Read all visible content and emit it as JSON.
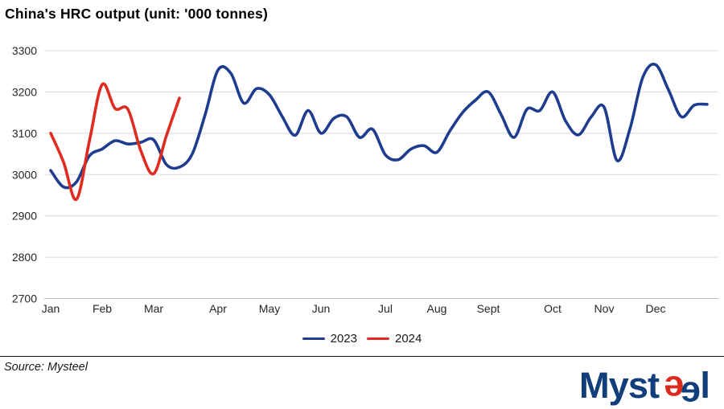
{
  "title": "China's HRC output (unit: '000 tonnes)",
  "source": "Source: Mysteel",
  "logo": {
    "text_main": "Myst",
    "glyph": "e",
    "text_end": "l",
    "alt": "Mysteel",
    "blue": "#133E7C",
    "red": "#DC2B1E"
  },
  "colors": {
    "blue": "#1F3D8F",
    "red": "#E02B20",
    "grid": "#D9D9D9",
    "axis_line": "#BFBFBF",
    "text": "#262626"
  },
  "legend": [
    {
      "label": "2023",
      "color": "#1F3D8F"
    },
    {
      "label": "2024",
      "color": "#E02B20"
    }
  ],
  "chart_data": {
    "type": "line",
    "title": "China's HRC output (unit: '000 tonnes)",
    "ylabel": "",
    "xlabel": "",
    "unit": "'000 tonnes",
    "frequency": "weekly",
    "ylim": [
      2700,
      3300
    ],
    "grid": "horizontal",
    "legend_position": "bottom-center",
    "y_ticks": [
      3300,
      3200,
      3100,
      3000,
      2900,
      2800,
      2700
    ],
    "x_months": [
      {
        "label": "Jan",
        "week": 0
      },
      {
        "label": "Feb",
        "week": 4
      },
      {
        "label": "Mar",
        "week": 8
      },
      {
        "label": "Apr",
        "week": 13
      },
      {
        "label": "May",
        "week": 17
      },
      {
        "label": "Jun",
        "week": 21
      },
      {
        "label": "Jul",
        "week": 26
      },
      {
        "label": "Aug",
        "week": 30
      },
      {
        "label": "Sept",
        "week": 34
      },
      {
        "label": "Oct",
        "week": 39
      },
      {
        "label": "Nov",
        "week": 43
      },
      {
        "label": "Dec",
        "week": 47
      }
    ],
    "series": [
      {
        "name": "2023",
        "color": "#1F3D8F",
        "values": [
          3010,
          2970,
          2982,
          3045,
          3062,
          3082,
          3074,
          3078,
          3084,
          3024,
          3018,
          3050,
          3145,
          3253,
          3245,
          3173,
          3208,
          3193,
          3140,
          3095,
          3155,
          3100,
          3136,
          3140,
          3090,
          3110,
          3048,
          3036,
          3062,
          3070,
          3054,
          3105,
          3150,
          3180,
          3200,
          3145,
          3090,
          3158,
          3155,
          3200,
          3130,
          3096,
          3140,
          3163,
          3034,
          3110,
          3235,
          3266,
          3205,
          3140,
          3168,
          3170
        ]
      },
      {
        "name": "2024",
        "color": "#E02B20",
        "values": [
          3100,
          3030,
          2940,
          3080,
          3218,
          3160,
          3158,
          3058,
          3002,
          3095,
          3185
        ]
      }
    ]
  }
}
